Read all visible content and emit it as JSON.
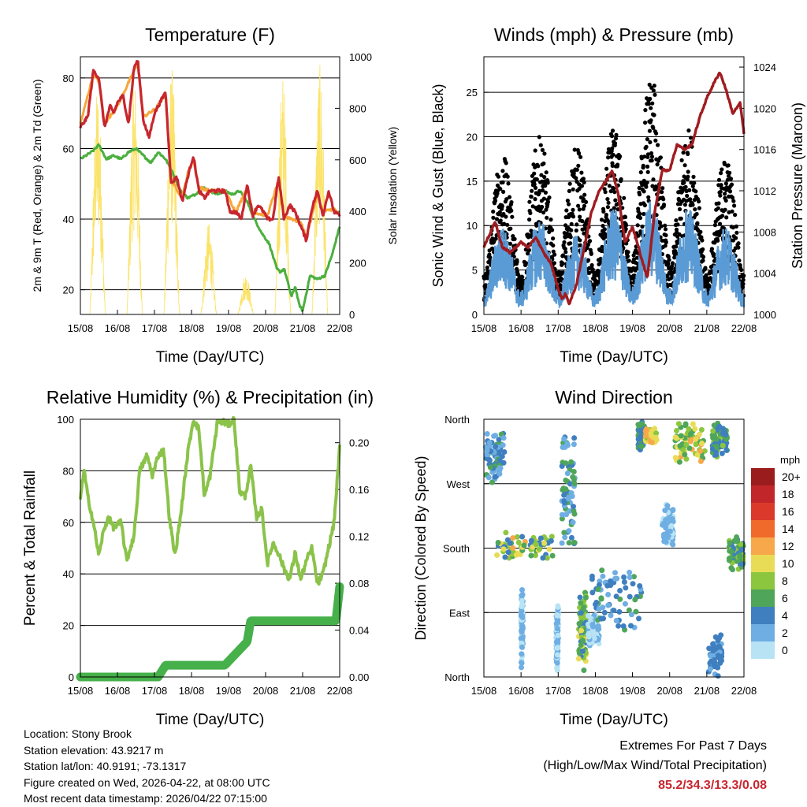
{
  "chart_data": [
    {
      "type": "line",
      "id": "temperature",
      "title": "Temperature (F)",
      "xlabel": "Time (Day/UTC)",
      "ylabel": "2m & 9m T (Red, Orange) & 2m Td (Green)",
      "ylabel_right": "Solar Insolation (Yellow)",
      "xlim": [
        0,
        7
      ],
      "ylim": [
        13,
        86
      ],
      "ylim_right": [
        0,
        1000
      ],
      "x_ticks": [
        "15/08",
        "16/08",
        "17/08",
        "18/08",
        "19/08",
        "20/08",
        "21/08",
        "22/08"
      ],
      "y_ticks": [
        20,
        40,
        60,
        80
      ],
      "y_ticks_right": [
        0,
        200,
        400,
        600,
        800,
        1000
      ],
      "series": [
        {
          "name": "2m T",
          "color": "#c8262e",
          "x": [
            0,
            0.2,
            0.35,
            0.5,
            0.65,
            0.8,
            0.9,
            1.0,
            1.15,
            1.3,
            1.45,
            1.55,
            1.7,
            1.85,
            2.0,
            2.15,
            2.3,
            2.45,
            2.6,
            2.75,
            2.9,
            3.05,
            3.2,
            3.35,
            3.5,
            3.7,
            3.9,
            4.05,
            4.2,
            4.35,
            4.5,
            4.65,
            4.8,
            4.95,
            5.05,
            5.2,
            5.35,
            5.5,
            5.65,
            5.8,
            5.95,
            6.1,
            6.25,
            6.4,
            6.55,
            6.7,
            6.85,
            7.0
          ],
          "values": [
            66,
            69,
            82,
            80,
            66,
            72,
            70,
            73,
            75,
            67,
            83,
            85,
            68,
            63,
            70,
            73,
            76,
            50,
            52,
            45,
            52,
            58,
            48,
            46,
            48,
            48,
            48,
            42,
            42,
            40,
            50,
            41,
            44,
            42,
            40,
            40,
            52,
            40,
            44,
            42,
            38,
            34,
            43,
            48,
            41,
            48,
            42,
            41
          ]
        },
        {
          "name": "9m T",
          "color": "#f7a63a",
          "x": [
            0,
            0.35,
            0.5,
            0.65,
            1.0,
            1.45,
            1.55,
            1.7,
            2.0,
            2.3,
            2.45,
            2.75,
            2.9,
            3.05,
            3.2,
            3.5,
            3.9,
            4.2,
            4.5,
            4.65,
            5.05,
            5.35,
            5.5,
            5.95,
            6.1,
            6.4,
            6.55,
            6.85,
            7.0
          ],
          "values": [
            67,
            81,
            79,
            67,
            72,
            82,
            84,
            69,
            71,
            75,
            51,
            46,
            53,
            57,
            49,
            48,
            48,
            42,
            49,
            42,
            41,
            51,
            41,
            39,
            35,
            47,
            42,
            43,
            41
          ]
        },
        {
          "name": "2m Td",
          "color": "#4caf3f",
          "x": [
            0,
            0.3,
            0.5,
            0.7,
            0.9,
            1.1,
            1.3,
            1.5,
            1.7,
            1.9,
            2.1,
            2.3,
            2.5,
            2.7,
            2.9,
            3.1,
            3.3,
            3.5,
            3.7,
            3.9,
            4.1,
            4.3,
            4.5,
            4.7,
            4.9,
            5.1,
            5.3,
            5.4,
            5.5,
            5.6,
            5.7,
            5.8,
            5.9,
            6.0,
            6.2,
            6.4,
            6.6,
            6.8,
            6.9,
            7.0
          ],
          "values": [
            57,
            59,
            61,
            57,
            58,
            57,
            59,
            60,
            58,
            56,
            59,
            57,
            53,
            48,
            46,
            47,
            49,
            48,
            47,
            48,
            47,
            48,
            45,
            40,
            36,
            33,
            26,
            25,
            26,
            22,
            18,
            21,
            16,
            14,
            24,
            23,
            24,
            30,
            34,
            38
          ]
        },
        {
          "name": "Solar Insolation",
          "color": "#fbe36a",
          "axis": "right",
          "peaks_x": [
            0.45,
            1.5,
            2.45,
            3.45,
            4.45,
            5.45,
            6.5
          ],
          "peaks_values": [
            890,
            930,
            970,
            360,
            160,
            950,
            970
          ]
        }
      ]
    },
    {
      "type": "scatter",
      "id": "winds",
      "title": "Winds (mph) & Pressure (mb)",
      "xlabel": "Time (Day/UTC)",
      "ylabel": "Sonic Wind & Gust (Blue, Black)",
      "ylabel_right": "Station Pressure (Maroon)",
      "xlim": [
        0,
        7
      ],
      "ylim": [
        0,
        29
      ],
      "ylim_right": [
        1000,
        1025
      ],
      "x_ticks": [
        "15/08",
        "16/08",
        "17/08",
        "18/08",
        "19/08",
        "20/08",
        "21/08",
        "22/08"
      ],
      "y_ticks": [
        0,
        5,
        10,
        15,
        20,
        25
      ],
      "y_ticks_right": [
        1000,
        1004,
        1008,
        1012,
        1016,
        1020,
        1024
      ],
      "series": [
        {
          "name": "Gust",
          "color": "#000000",
          "daily_peak_x": [
            0.6,
            1.5,
            2.5,
            3.3,
            4.3,
            5.5,
            6.5
          ],
          "daily_peak_values": [
            18,
            20,
            19,
            21,
            27,
            21,
            18
          ]
        },
        {
          "name": "Sonic Wind",
          "color": "#5b9bd5",
          "daily_peak_x": [
            0.6,
            1.5,
            2.5,
            3.3,
            4.3,
            5.5,
            6.5
          ],
          "daily_peak_values": [
            10,
            11,
            9,
            12,
            13,
            12,
            10
          ]
        },
        {
          "name": "Station Pressure",
          "color": "#a01c20",
          "axis": "right",
          "x": [
            0,
            0.3,
            0.5,
            0.7,
            1.0,
            1.2,
            1.4,
            1.6,
            1.8,
            2.0,
            2.1,
            2.2,
            2.3,
            2.5,
            2.7,
            2.9,
            3.1,
            3.3,
            3.45,
            3.6,
            3.8,
            4.0,
            4.2,
            4.4,
            4.6,
            4.8,
            5.0,
            5.2,
            5.4,
            5.6,
            5.8,
            6.0,
            6.2,
            6.35,
            6.5,
            6.7,
            6.9,
            7.0
          ],
          "values": [
            1006.5,
            1009,
            1006.5,
            1006,
            1007,
            1006.5,
            1007.5,
            1006,
            1005,
            1002.5,
            1001.5,
            1002,
            1001,
            1003,
            1006.5,
            1010,
            1012,
            1013,
            1014,
            1012,
            1007,
            1008.5,
            1006,
            1003.5,
            1010,
            1014,
            1014,
            1016.5,
            1016,
            1016.5,
            1019,
            1021,
            1022.5,
            1023.5,
            1022,
            1019.5,
            1020.5,
            1017.5
          ]
        }
      ]
    },
    {
      "type": "line",
      "id": "humidity",
      "title": "Relative Humidity (%) & Precipitation (in)",
      "xlabel": "Time (Day/UTC)",
      "ylabel": "Percent & Total Rainfall",
      "xlim": [
        0,
        7
      ],
      "ylim": [
        0,
        100
      ],
      "ylim_right": [
        0,
        0.22
      ],
      "x_ticks": [
        "15/08",
        "16/08",
        "17/08",
        "18/08",
        "19/08",
        "20/08",
        "21/08",
        "22/08"
      ],
      "y_ticks": [
        0,
        20,
        40,
        60,
        80,
        100
      ],
      "y_ticks_right": [
        "0.00",
        "0.04",
        "0.08",
        "0.12",
        "0.16",
        "0.20"
      ],
      "series": [
        {
          "name": "Relative Humidity",
          "color": "#8bc34a",
          "x": [
            0,
            0.1,
            0.2,
            0.35,
            0.5,
            0.6,
            0.75,
            0.9,
            1.1,
            1.25,
            1.45,
            1.6,
            1.8,
            1.95,
            2.1,
            2.25,
            2.4,
            2.55,
            2.7,
            2.9,
            3.05,
            3.2,
            3.35,
            3.5,
            3.7,
            3.85,
            4.0,
            4.15,
            4.3,
            4.45,
            4.6,
            4.75,
            4.9,
            5.05,
            5.2,
            5.35,
            5.5,
            5.65,
            5.8,
            5.95,
            6.1,
            6.25,
            6.4,
            6.55,
            6.7,
            6.85,
            7.0
          ],
          "values": [
            70,
            80,
            70,
            60,
            47,
            55,
            62,
            58,
            60,
            45,
            55,
            80,
            86,
            78,
            86,
            88,
            62,
            47,
            62,
            87,
            100,
            96,
            70,
            78,
            99,
            99,
            98,
            100,
            72,
            70,
            82,
            62,
            65,
            44,
            52,
            48,
            42,
            38,
            48,
            38,
            45,
            50,
            36,
            40,
            50,
            60,
            89
          ]
        },
        {
          "name": "Total Precipitation",
          "color": "#46b04a",
          "axis": "right",
          "x": [
            0,
            2.1,
            2.3,
            3.9,
            4.2,
            4.5,
            4.6,
            6.9,
            7.0
          ],
          "values": [
            0,
            0,
            0.01,
            0.01,
            0.02,
            0.03,
            0.048,
            0.048,
            0.077
          ]
        }
      ]
    },
    {
      "type": "scatter",
      "id": "wind_direction",
      "title": "Wind Direction",
      "xlabel": "Time (Day/UTC)",
      "ylabel": "Direction (Colored By Speed)",
      "xlim": [
        0,
        7
      ],
      "x_ticks": [
        "15/08",
        "16/08",
        "17/08",
        "18/08",
        "19/08",
        "20/08",
        "21/08",
        "22/08"
      ],
      "y_ticks": [
        "North",
        "West",
        "South",
        "East",
        "North"
      ],
      "colorbar": {
        "unit": "mph",
        "labels": [
          "20+",
          "18",
          "16",
          "14",
          "12",
          "10",
          "8",
          "6",
          "4",
          "2",
          "0"
        ],
        "colors": [
          "#9b1c1c",
          "#c0262a",
          "#db3a2b",
          "#f06a2b",
          "#f7a84a",
          "#e8dc56",
          "#8cc63f",
          "#4fa65a",
          "#3f7fbf",
          "#6eaee3",
          "#b7e3f5"
        ]
      },
      "clusters": [
        {
          "x": [
            0.1,
            0.5
          ],
          "dir": "N-W",
          "speed": "2-6"
        },
        {
          "x": [
            0.3,
            1.9
          ],
          "dir": "S",
          "speed": "4-12"
        },
        {
          "x": [
            2.5,
            3.2
          ],
          "dir": "E",
          "speed": "6-10"
        },
        {
          "x": [
            3.0,
            4.3
          ],
          "dir": "E-S",
          "speed": "2-6"
        },
        {
          "x": [
            4.2,
            5.8
          ],
          "dir": "N",
          "speed": "6-12"
        },
        {
          "x": [
            6.6,
            7.0
          ],
          "dir": "S",
          "speed": "4-8"
        }
      ]
    }
  ],
  "info": {
    "location": "Location: Stony Brook",
    "elevation": "Station elevation: 43.9217 m",
    "latlon": "Station lat/lon: 40.9191; -73.1317",
    "created": "Figure created on Wed, 2026-04-22, at 08:00 UTC",
    "timestamp": "Most recent data timestamp: 2026/04/22 07:15:00"
  },
  "extremes": {
    "title": "Extremes For Past 7 Days",
    "subtitle": "(High/Low/Max Wind/Total Precipitation)",
    "values": "85.2/34.3/13.3/0.08"
  }
}
